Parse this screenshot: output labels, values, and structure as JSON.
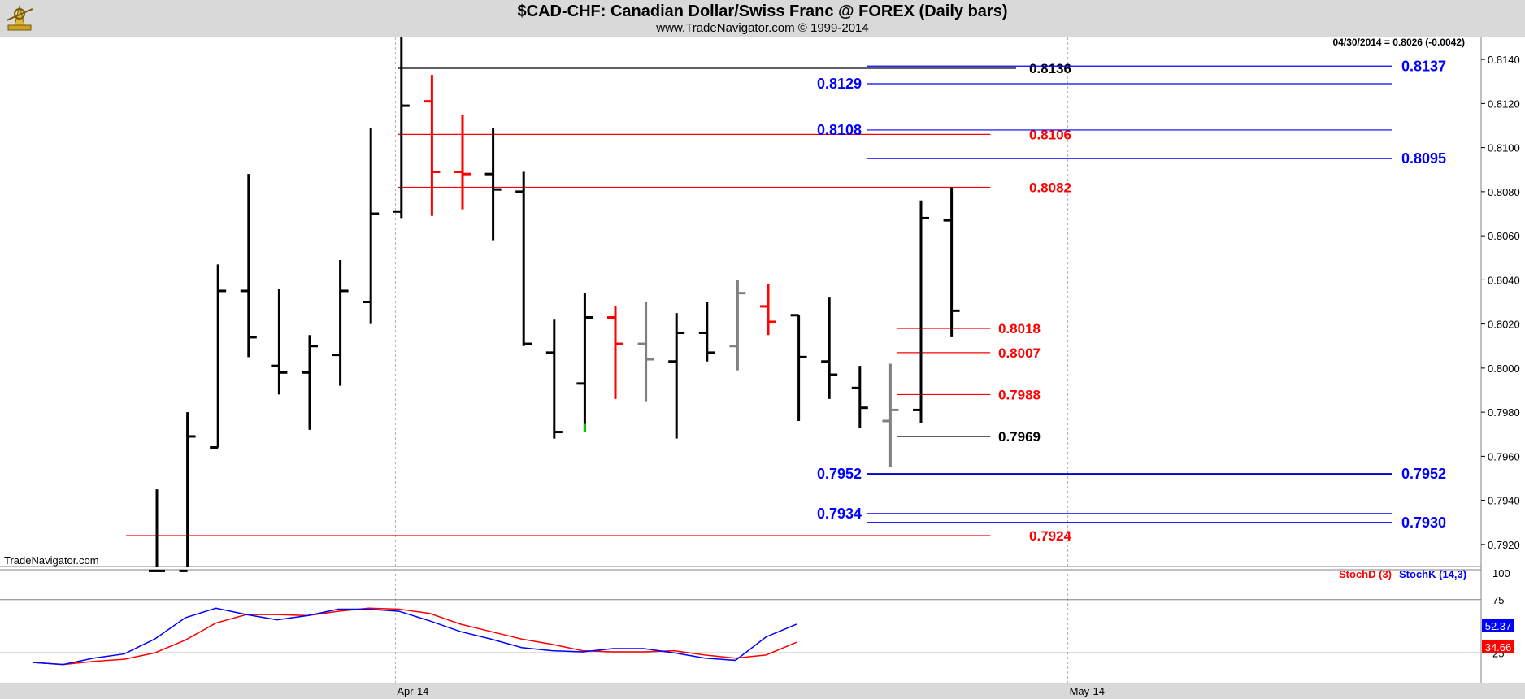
{
  "header": {
    "title": "$CAD-CHF:  Canadian Dollar/Swiss Franc @ FOREX  (Daily bars)",
    "subtitle": "www.TradeNavigator.com © 1999-2014"
  },
  "chart_data": [
    {
      "type": "ohlc",
      "quote": "04/30/2014 = 0.8026 (-0.0042)",
      "watermark": "TradeNavigator.com",
      "ylim": [
        0.791,
        0.815
      ],
      "y_ticks": [
        "0.8140",
        "0.8120",
        "0.8100",
        "0.8080",
        "0.8060",
        "0.8040",
        "0.8020",
        "0.8000",
        "0.7980",
        "0.7960",
        "0.7940",
        "0.7920"
      ],
      "x_labels": [
        {
          "label": "Apr-14",
          "bar": 9
        },
        {
          "label": "May-14",
          "bar": 31
        }
      ],
      "colors": {
        "up": "#000000",
        "down_special": "#ff0000",
        "neutral": "#808080",
        "highlight": "#00cc00"
      },
      "bars": [
        {
          "o": 0.7908,
          "h": 0.7945,
          "l": 0.7908,
          "c": 0.7908,
          "color": "#000000"
        },
        {
          "o": 0.7908,
          "h": 0.798,
          "l": 0.7908,
          "c": 0.7969,
          "color": "#000000"
        },
        {
          "o": 0.7964,
          "h": 0.8047,
          "l": 0.7964,
          "c": 0.8035,
          "color": "#000000"
        },
        {
          "o": 0.8035,
          "h": 0.8088,
          "l": 0.8005,
          "c": 0.8014,
          "color": "#000000"
        },
        {
          "o": 0.8001,
          "h": 0.8036,
          "l": 0.7988,
          "c": 0.7998,
          "color": "#000000"
        },
        {
          "o": 0.7998,
          "h": 0.8015,
          "l": 0.7972,
          "c": 0.801,
          "color": "#000000"
        },
        {
          "o": 0.8006,
          "h": 0.8049,
          "l": 0.7992,
          "c": 0.8035,
          "color": "#000000"
        },
        {
          "o": 0.803,
          "h": 0.8109,
          "l": 0.802,
          "c": 0.807,
          "color": "#000000"
        },
        {
          "o": 0.8071,
          "h": 0.815,
          "l": 0.8068,
          "c": 0.8119,
          "color": "#000000"
        },
        {
          "o": 0.8121,
          "h": 0.8133,
          "l": 0.8069,
          "c": 0.8089,
          "color": "#ff0000"
        },
        {
          "o": 0.8089,
          "h": 0.8115,
          "l": 0.8072,
          "c": 0.8088,
          "color": "#ff0000"
        },
        {
          "o": 0.8088,
          "h": 0.8109,
          "l": 0.8058,
          "c": 0.8081,
          "color": "#000000"
        },
        {
          "o": 0.808,
          "h": 0.8089,
          "l": 0.801,
          "c": 0.8011,
          "color": "#000000"
        },
        {
          "o": 0.8007,
          "h": 0.8022,
          "l": 0.7968,
          "c": 0.7971,
          "color": "#000000"
        },
        {
          "o": 0.7993,
          "h": 0.8034,
          "l": 0.7971,
          "c": 0.8023,
          "color": "#000000"
        },
        {
          "o": 0.8023,
          "h": 0.8028,
          "l": 0.7986,
          "c": 0.8011,
          "color": "#ff0000"
        },
        {
          "o": 0.8011,
          "h": 0.803,
          "l": 0.7985,
          "c": 0.8004,
          "color": "#808080"
        },
        {
          "o": 0.8003,
          "h": 0.8025,
          "l": 0.7968,
          "c": 0.8016,
          "color": "#000000"
        },
        {
          "o": 0.8016,
          "h": 0.803,
          "l": 0.8003,
          "c": 0.8007,
          "color": "#000000"
        },
        {
          "o": 0.801,
          "h": 0.804,
          "l": 0.7999,
          "c": 0.8034,
          "color": "#808080"
        },
        {
          "o": 0.8028,
          "h": 0.8038,
          "l": 0.8015,
          "c": 0.8021,
          "color": "#ff0000"
        },
        {
          "o": 0.8024,
          "h": 0.8024,
          "l": 0.7976,
          "c": 0.8005,
          "color": "#000000"
        },
        {
          "o": 0.8003,
          "h": 0.8032,
          "l": 0.7986,
          "c": 0.7997,
          "color": "#000000"
        },
        {
          "o": 0.7991,
          "h": 0.8001,
          "l": 0.7973,
          "c": 0.7982,
          "color": "#000000"
        },
        {
          "o": 0.7976,
          "h": 0.8002,
          "l": 0.7955,
          "c": 0.7981,
          "color": "#808080"
        },
        {
          "o": 0.7981,
          "h": 0.8076,
          "l": 0.7975,
          "c": 0.8068,
          "color": "#000000"
        },
        {
          "o": 0.8067,
          "h": 0.8082,
          "l": 0.8014,
          "c": 0.8026,
          "color": "#000000"
        }
      ],
      "levels": [
        {
          "label": "0.8136",
          "value": 0.8136,
          "color": "#000000",
          "from_bar": 8,
          "to_bar": 23,
          "label_pos": "right-inline"
        },
        {
          "label": "0.8106",
          "value": 0.8106,
          "color": "#ff0000",
          "from_bar": 8,
          "to_bar": 27,
          "label_pos": "right-inline"
        },
        {
          "label": "0.8082",
          "value": 0.8082,
          "color": "#ff0000",
          "from_bar": 8,
          "to_bar": 27,
          "label_pos": "right-inline"
        },
        {
          "label": "0.8018",
          "value": 0.8018,
          "color": "#ff0000",
          "from_bar": 25,
          "to_bar": 27,
          "label_pos": "right-inline"
        },
        {
          "label": "0.8007",
          "value": 0.8007,
          "color": "#ff0000",
          "from_bar": 25,
          "to_bar": 27,
          "label_pos": "right-inline"
        },
        {
          "label": "0.7988",
          "value": 0.7988,
          "color": "#ff0000",
          "from_bar": 25,
          "to_bar": 27,
          "label_pos": "right-inline"
        },
        {
          "label": "0.7969",
          "value": 0.7969,
          "color": "#000000",
          "from_bar": 25,
          "to_bar": 27,
          "label_pos": "right-inline"
        },
        {
          "label": "0.7924",
          "value": 0.7924,
          "color": "#ff0000",
          "from_bar": -1,
          "to_bar": 27,
          "label_pos": "right-inline"
        }
      ],
      "fib_levels": [
        {
          "left_label": "",
          "right_label": "0.8137",
          "value": 0.8137,
          "color": "#0000ff"
        },
        {
          "left_label": "0.8129",
          "right_label": "",
          "value": 0.8129,
          "color": "#0000ff"
        },
        {
          "left_label": "0.8108",
          "right_label": "",
          "value": 0.8108,
          "color": "#0000ff"
        },
        {
          "left_label": "",
          "right_label": "0.8095",
          "value": 0.8095,
          "color": "#0000ff"
        },
        {
          "left_label": "0.7952",
          "right_label": "0.7952",
          "value": 0.7952,
          "color": "#0000cc"
        },
        {
          "left_label": "0.7934",
          "right_label": "",
          "value": 0.7934,
          "color": "#0000ff"
        },
        {
          "left_label": "",
          "right_label": "0.7930",
          "value": 0.793,
          "color": "#0000ff"
        }
      ]
    },
    {
      "type": "line",
      "ylim": [
        0,
        100
      ],
      "y_ticks": [
        "100",
        "75",
        "25"
      ],
      "legend": [
        {
          "name": "StochD (3)",
          "color": "#ff0000"
        },
        {
          "name": "StochK (14,3)",
          "color": "#0000ff"
        }
      ],
      "series": [
        {
          "name": "StochD (3)",
          "color": "#ff0000",
          "last_label": "34.66",
          "values": [
            16,
            14,
            17,
            19,
            25,
            37,
            53,
            61,
            61,
            60,
            64,
            67,
            66,
            62,
            52,
            45,
            38,
            33,
            27,
            26,
            26,
            27,
            23,
            20,
            23,
            35
          ]
        },
        {
          "name": "StochK (14,3)",
          "color": "#0000ff",
          "last_label": "52.37",
          "values": [
            16,
            14,
            20,
            24,
            38,
            58,
            67,
            61,
            56,
            60,
            66,
            66,
            64,
            55,
            45,
            38,
            30,
            27,
            26,
            29,
            29,
            25,
            20,
            18,
            40,
            52
          ]
        }
      ],
      "hlines": [
        75,
        25
      ]
    }
  ]
}
